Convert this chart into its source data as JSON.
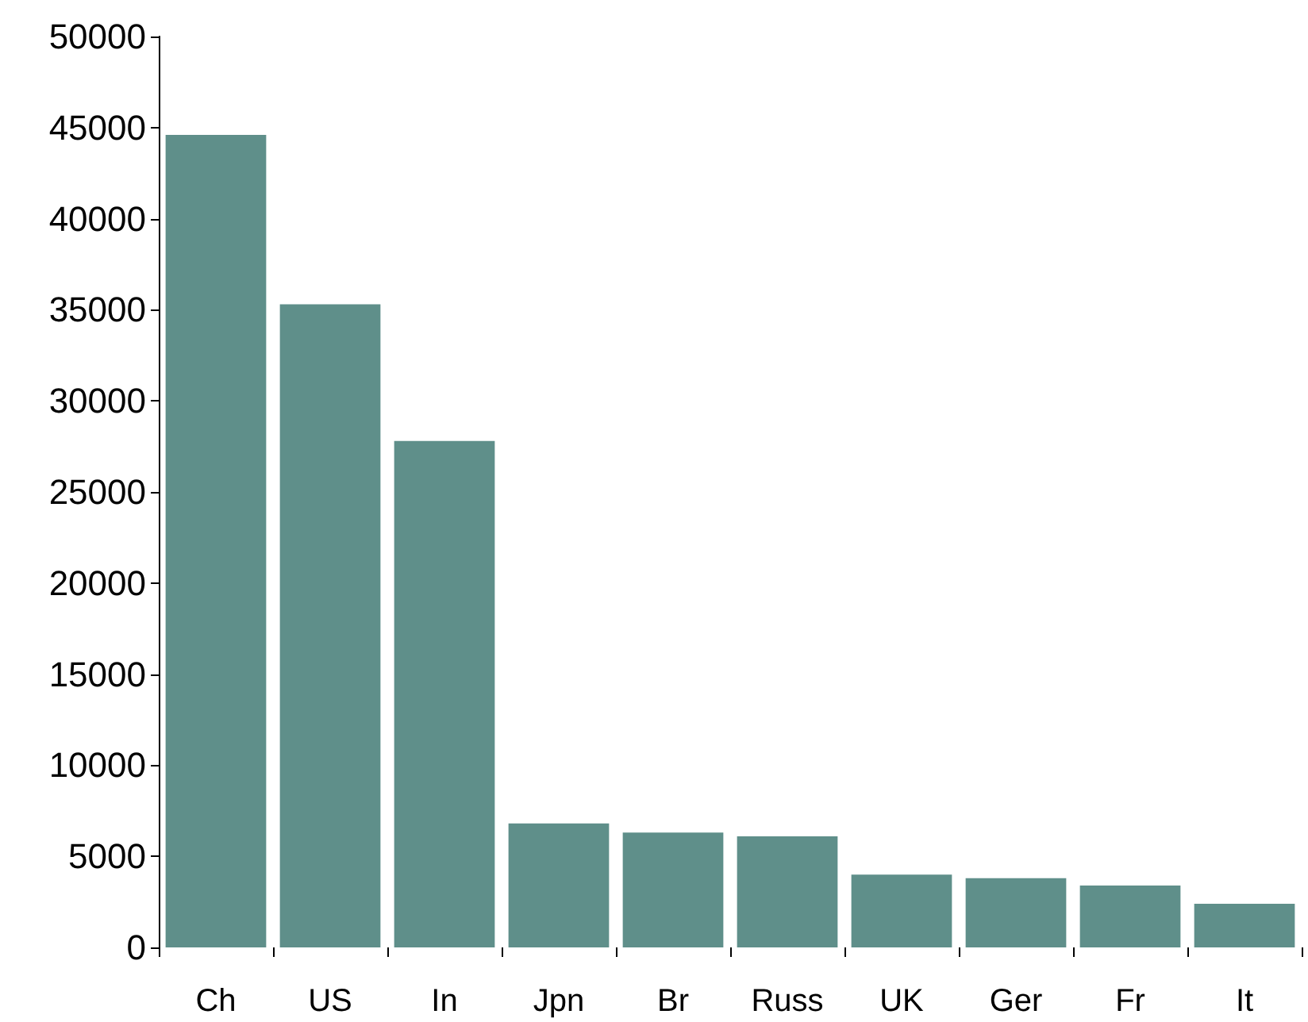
{
  "chart_data": {
    "type": "bar",
    "categories": [
      "Ch",
      "US",
      "In",
      "Jpn",
      "Br",
      "Russ",
      "UK",
      "Ger",
      "Fr",
      "It"
    ],
    "values": [
      44600,
      35300,
      27800,
      6800,
      6300,
      6100,
      4000,
      3800,
      3400,
      2400
    ],
    "color": "#5f8f8a",
    "ylim": [
      0,
      50000
    ],
    "yticks": [
      0,
      5000,
      10000,
      15000,
      20000,
      25000,
      30000,
      35000,
      40000,
      45000,
      50000
    ],
    "grid": false
  }
}
